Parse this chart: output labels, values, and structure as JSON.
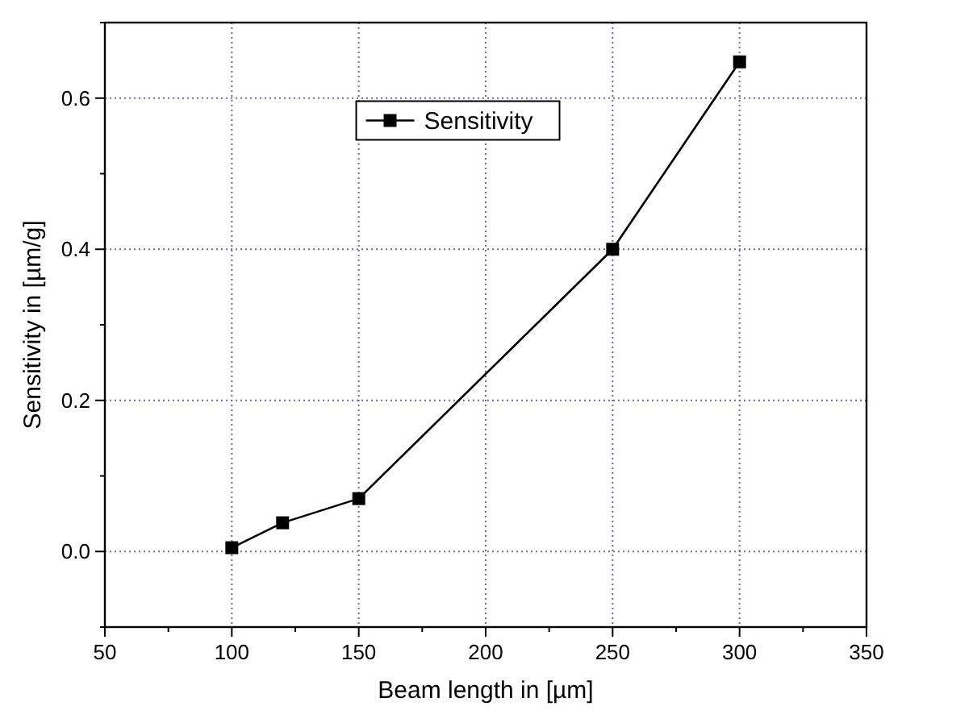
{
  "chart_data": {
    "type": "line",
    "xlabel": "Beam length in [µm]",
    "ylabel": "Sensitivity in [µm/g]",
    "x": [
      100,
      120,
      150,
      250,
      300
    ],
    "series": [
      {
        "name": "Sensitivity",
        "color": "#000000",
        "values": [
          0.005,
          0.038,
          0.07,
          0.4,
          0.648
        ]
      }
    ],
    "xlim": [
      50,
      350
    ],
    "xticks": [
      50,
      100,
      150,
      200,
      250,
      300,
      350
    ],
    "ylim": [
      -0.1,
      0.7
    ],
    "yticks": [
      {
        "value": 0,
        "label": "0.0"
      },
      {
        "value": 0.2,
        "label": "0.2"
      },
      {
        "value": 0.4,
        "label": "0.4"
      },
      {
        "value": 0.6,
        "label": "0.6"
      }
    ],
    "grid": true,
    "legend": "top",
    "marker": "square",
    "line_style": "solid"
  }
}
